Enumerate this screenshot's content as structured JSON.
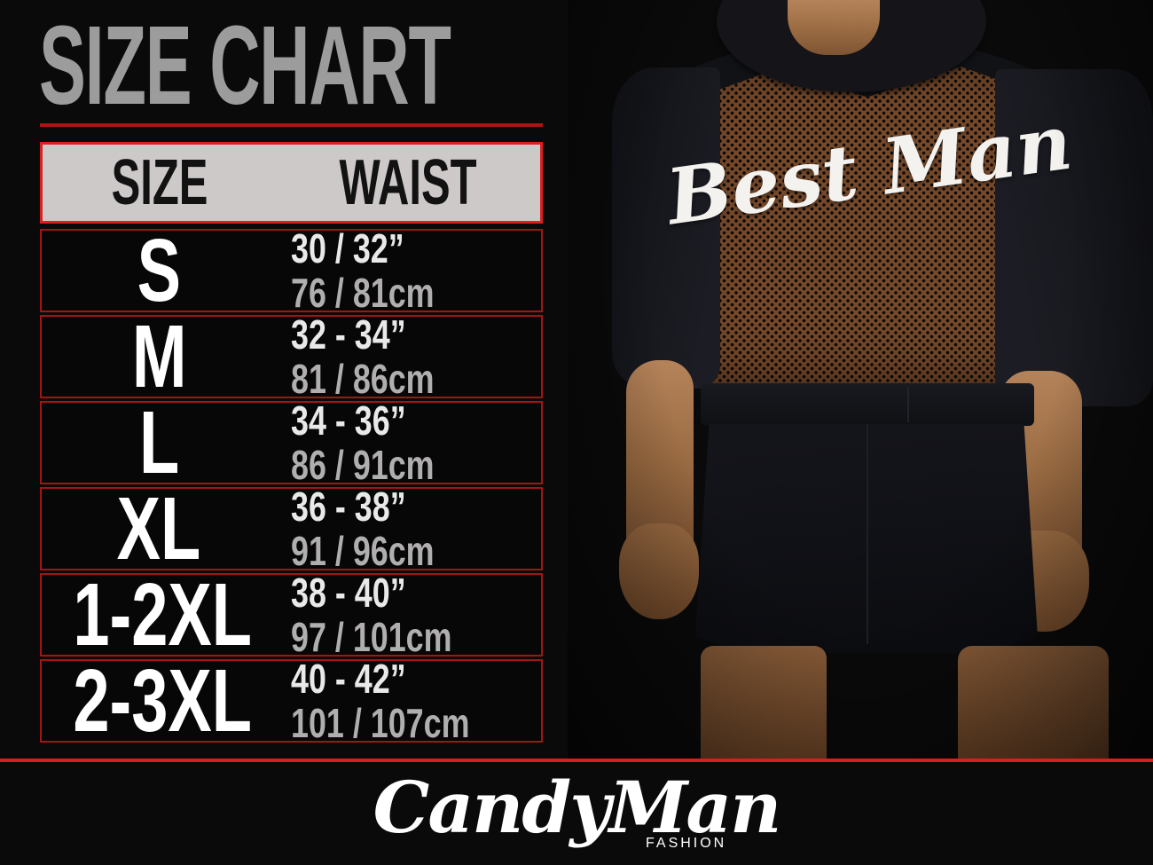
{
  "title": "SIZE CHART",
  "table": {
    "headers": {
      "size": "SIZE",
      "waist": "WAIST"
    },
    "rows": [
      {
        "size": "S",
        "inches": "30 / 32”",
        "cm": "76 / 81cm"
      },
      {
        "size": "M",
        "inches": "32 - 34”",
        "cm": "81 / 86cm"
      },
      {
        "size": "L",
        "inches": "34 - 36”",
        "cm": "86 / 91cm"
      },
      {
        "size": "XL",
        "inches": "36 - 38”",
        "cm": "91 / 96cm"
      },
      {
        "size": "1-2XL",
        "inches": "38 - 40”",
        "cm": "97 / 101cm"
      },
      {
        "size": "2-3XL",
        "inches": "40 - 42”",
        "cm": "101 / 107cm"
      }
    ]
  },
  "photo": {
    "garment_text": "Best Man"
  },
  "brand": {
    "name": "CandyMan",
    "tagline": "FASHION"
  },
  "colors": {
    "background": "#0a0a0a",
    "accent_red": "#dd1c1c",
    "border_red": "#a31515",
    "header_border_red": "#dc2020",
    "underline_red": "#ad1414",
    "header_bg": "#cdc9c9",
    "title_gray": "#9c9c9c"
  },
  "chart_data": {
    "type": "table",
    "title": "SIZE CHART",
    "columns": [
      "SIZE",
      "WAIST"
    ],
    "rows": [
      [
        "S",
        "30 / 32” — 76 / 81cm"
      ],
      [
        "M",
        "32 - 34” — 81 / 86cm"
      ],
      [
        "L",
        "34 - 36” — 86 / 91cm"
      ],
      [
        "XL",
        "36 - 38” — 91 / 96cm"
      ],
      [
        "1-2XL",
        "38 - 40” — 97 / 101cm"
      ],
      [
        "2-3XL",
        "40 - 42” — 101 / 107cm"
      ]
    ]
  }
}
